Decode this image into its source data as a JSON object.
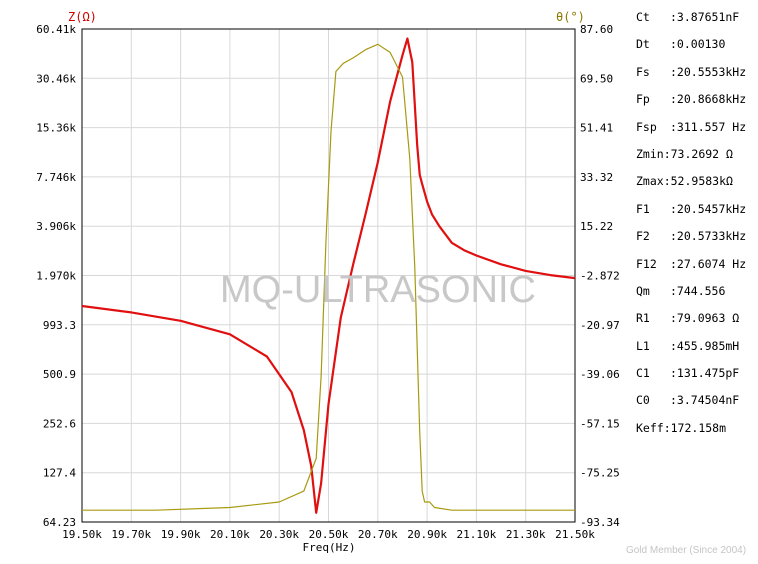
{
  "chart_data": {
    "type": "line",
    "xlabel": "Freq(Hz)",
    "x_ticks": [
      "19.50k",
      "19.70k",
      "19.90k",
      "20.10k",
      "20.30k",
      "20.50k",
      "20.70k",
      "20.90k",
      "21.10k",
      "21.30k",
      "21.50k"
    ],
    "x_range_khz": [
      19.5,
      21.5
    ],
    "y_left": {
      "label": "Z(Ω)",
      "scale": "log",
      "range": [
        64.23,
        60410
      ],
      "ticks": [
        "60.41k",
        "30.46k",
        "15.36k",
        "7.746k",
        "3.906k",
        "1.970k",
        "993.3",
        "500.9",
        "252.6",
        "127.4",
        "64.23"
      ]
    },
    "y_right": {
      "label": "θ(°)",
      "range": [
        -93.34,
        87.6
      ],
      "ticks": [
        "87.60",
        "69.50",
        "51.41",
        "33.32",
        "15.22",
        "-2.872",
        "-20.97",
        "-39.06",
        "-57.15",
        "-75.25",
        "-93.34"
      ]
    },
    "grid": true,
    "series": [
      {
        "name": "Z(Ω)",
        "axis": "left",
        "color": "#e01010",
        "x": [
          19.5,
          19.7,
          19.9,
          20.1,
          20.25,
          20.35,
          20.4,
          20.43,
          20.45,
          20.47,
          20.5,
          20.55,
          20.6,
          20.65,
          20.7,
          20.75,
          20.8,
          20.82,
          20.84,
          20.86,
          20.87,
          20.88,
          20.9,
          20.92,
          20.95,
          21.0,
          21.05,
          21.1,
          21.2,
          21.3,
          21.4,
          21.5
        ],
        "y": [
          1290,
          1180,
          1050,
          870,
          640,
          390,
          230,
          140,
          73,
          110,
          330,
          1100,
          2300,
          4600,
          9500,
          22000,
          42000,
          52958,
          38000,
          12000,
          8000,
          7000,
          5500,
          4600,
          3900,
          3100,
          2800,
          2600,
          2300,
          2100,
          1980,
          1900
        ]
      },
      {
        "name": "θ(°)",
        "axis": "right",
        "color": "#a89a10",
        "x": [
          19.5,
          19.8,
          20.1,
          20.3,
          20.4,
          20.45,
          20.47,
          20.49,
          20.51,
          20.53,
          20.56,
          20.6,
          20.65,
          20.7,
          20.75,
          20.8,
          20.83,
          20.85,
          20.87,
          20.88,
          20.89,
          20.91,
          20.93,
          21.0,
          21.2,
          21.5
        ],
        "y": [
          -89,
          -89,
          -88,
          -86,
          -82,
          -70,
          -40,
          10,
          50,
          72,
          75,
          77,
          80,
          82,
          79,
          70,
          40,
          0,
          -60,
          -82,
          -86,
          -86,
          -88,
          -89,
          -89,
          -89
        ]
      }
    ]
  },
  "watermark": "MQ-ULTRASONIC",
  "credit": "Gold Member (Since 2004)",
  "params": [
    {
      "name": "Ct",
      "value": ":3.87651nF"
    },
    {
      "name": "Dt",
      "value": ":0.00130"
    },
    {
      "name": "Fs",
      "value": ":20.5553kHz"
    },
    {
      "name": "Fp",
      "value": ":20.8668kHz"
    },
    {
      "name": "Fsp",
      "value": ":311.557 Hz"
    },
    {
      "name": "Zmin",
      "value": ":73.2692 Ω"
    },
    {
      "name": "Zmax",
      "value": ":52.9583kΩ"
    },
    {
      "name": "F1",
      "value": ":20.5457kHz"
    },
    {
      "name": "F2",
      "value": ":20.5733kHz"
    },
    {
      "name": "F12",
      "value": ":27.6074 Hz"
    },
    {
      "name": "Qm",
      "value": ":744.556"
    },
    {
      "name": "R1",
      "value": ":79.0963 Ω"
    },
    {
      "name": "L1",
      "value": ":455.985mH"
    },
    {
      "name": "C1",
      "value": ":131.475pF"
    },
    {
      "name": "C0",
      "value": ":3.74504nF"
    },
    {
      "name": "Keff",
      "value": ":172.158m"
    }
  ]
}
